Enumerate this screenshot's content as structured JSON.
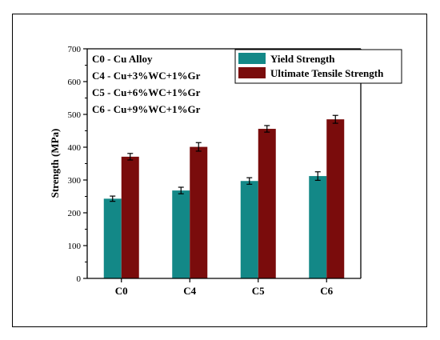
{
  "chart_data": {
    "type": "bar",
    "title": "",
    "xlabel": "",
    "ylabel": "Strength (MPa)",
    "ylim": [
      0,
      700
    ],
    "yticks": [
      0,
      100,
      200,
      300,
      400,
      500,
      600,
      700
    ],
    "categories": [
      "C0",
      "C4",
      "C5",
      "C6"
    ],
    "grid": false,
    "legend_position": "top-right",
    "series": [
      {
        "name": "Yield Strength",
        "color": "#138887",
        "values": [
          243,
          268,
          297,
          312
        ],
        "errors": [
          8,
          10,
          10,
          13
        ]
      },
      {
        "name": "Ultimate Tensile Strength",
        "color": "#7a0c0c",
        "values": [
          371,
          401,
          456,
          485
        ],
        "errors": [
          10,
          13,
          10,
          12
        ]
      }
    ],
    "annotations": [
      "C0 - Cu Alloy",
      "C4 - Cu+3%WC+1%Gr",
      "C5 - Cu+6%WC+1%Gr",
      "C6 - Cu+9%WC+1%Gr"
    ]
  }
}
